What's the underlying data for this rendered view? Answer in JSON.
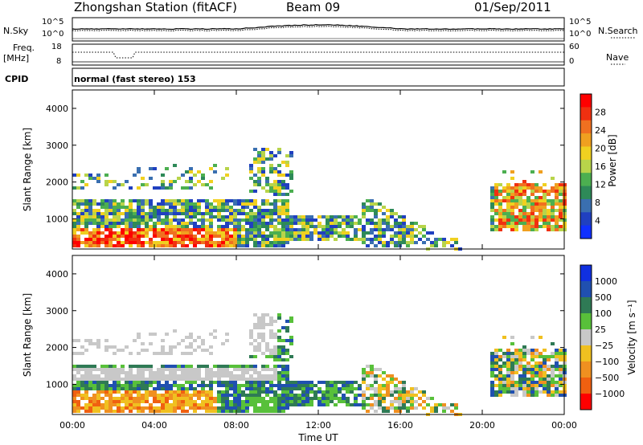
{
  "header": {
    "station": "Zhongshan Station (fitACF)",
    "beam": "Beam 09",
    "date": "01/Sep/2011"
  },
  "top_panels": {
    "nsky_label": "N.Sky",
    "nsearch_label": "N.Search",
    "nsky_tick_top": "10^5",
    "nsky_tick_bottom": "10^0",
    "freq_label_line1": "Freq.",
    "freq_label_line2": "[MHz]",
    "freq_tick_top": "18",
    "freq_tick_bottom": "8",
    "nave_label": "Nave",
    "nave_tick_top": "60",
    "nave_tick_bottom": "0",
    "cpid_label": "CPID",
    "cpid_value": "normal (fast stereo) 153"
  },
  "chart_data": [
    {
      "type": "heatmap",
      "panel": "power",
      "ylabel": "Slant Range [km]",
      "ylim": [
        180,
        4500
      ],
      "yticks": [
        1000,
        2000,
        3000,
        4000
      ],
      "colorbar": {
        "title": "Power [dB]",
        "ticks": [
          4,
          8,
          12,
          16,
          20,
          24,
          28
        ],
        "range": [
          0,
          32
        ],
        "colors": [
          "#1030ff",
          "#2040c0",
          "#3a6fb0",
          "#2e8a58",
          "#4caf50",
          "#b8d44a",
          "#f0d020",
          "#f0a020",
          "#f07020",
          "#f03010",
          "#ff0000"
        ]
      }
    },
    {
      "type": "heatmap",
      "panel": "velocity",
      "ylabel": "Slant Range [km]",
      "xlabel": "Time UT",
      "ylim": [
        180,
        4500
      ],
      "yticks": [
        1000,
        2000,
        3000,
        4000
      ],
      "xticks": [
        "00:00",
        "04:00",
        "08:00",
        "12:00",
        "16:00",
        "20:00",
        "00:00"
      ],
      "colorbar": {
        "title": "Velocity [m s⁻¹]",
        "ticks": [
          "1000",
          "500",
          "100",
          "25",
          "−25",
          "−100",
          "−500",
          "−1000"
        ],
        "colors": [
          "#1030e0",
          "#2050b0",
          "#2f7a55",
          "#58c03a",
          "#c8c8c8",
          "#f0c020",
          "#f09020",
          "#f06010",
          "#ff0000"
        ]
      }
    }
  ]
}
